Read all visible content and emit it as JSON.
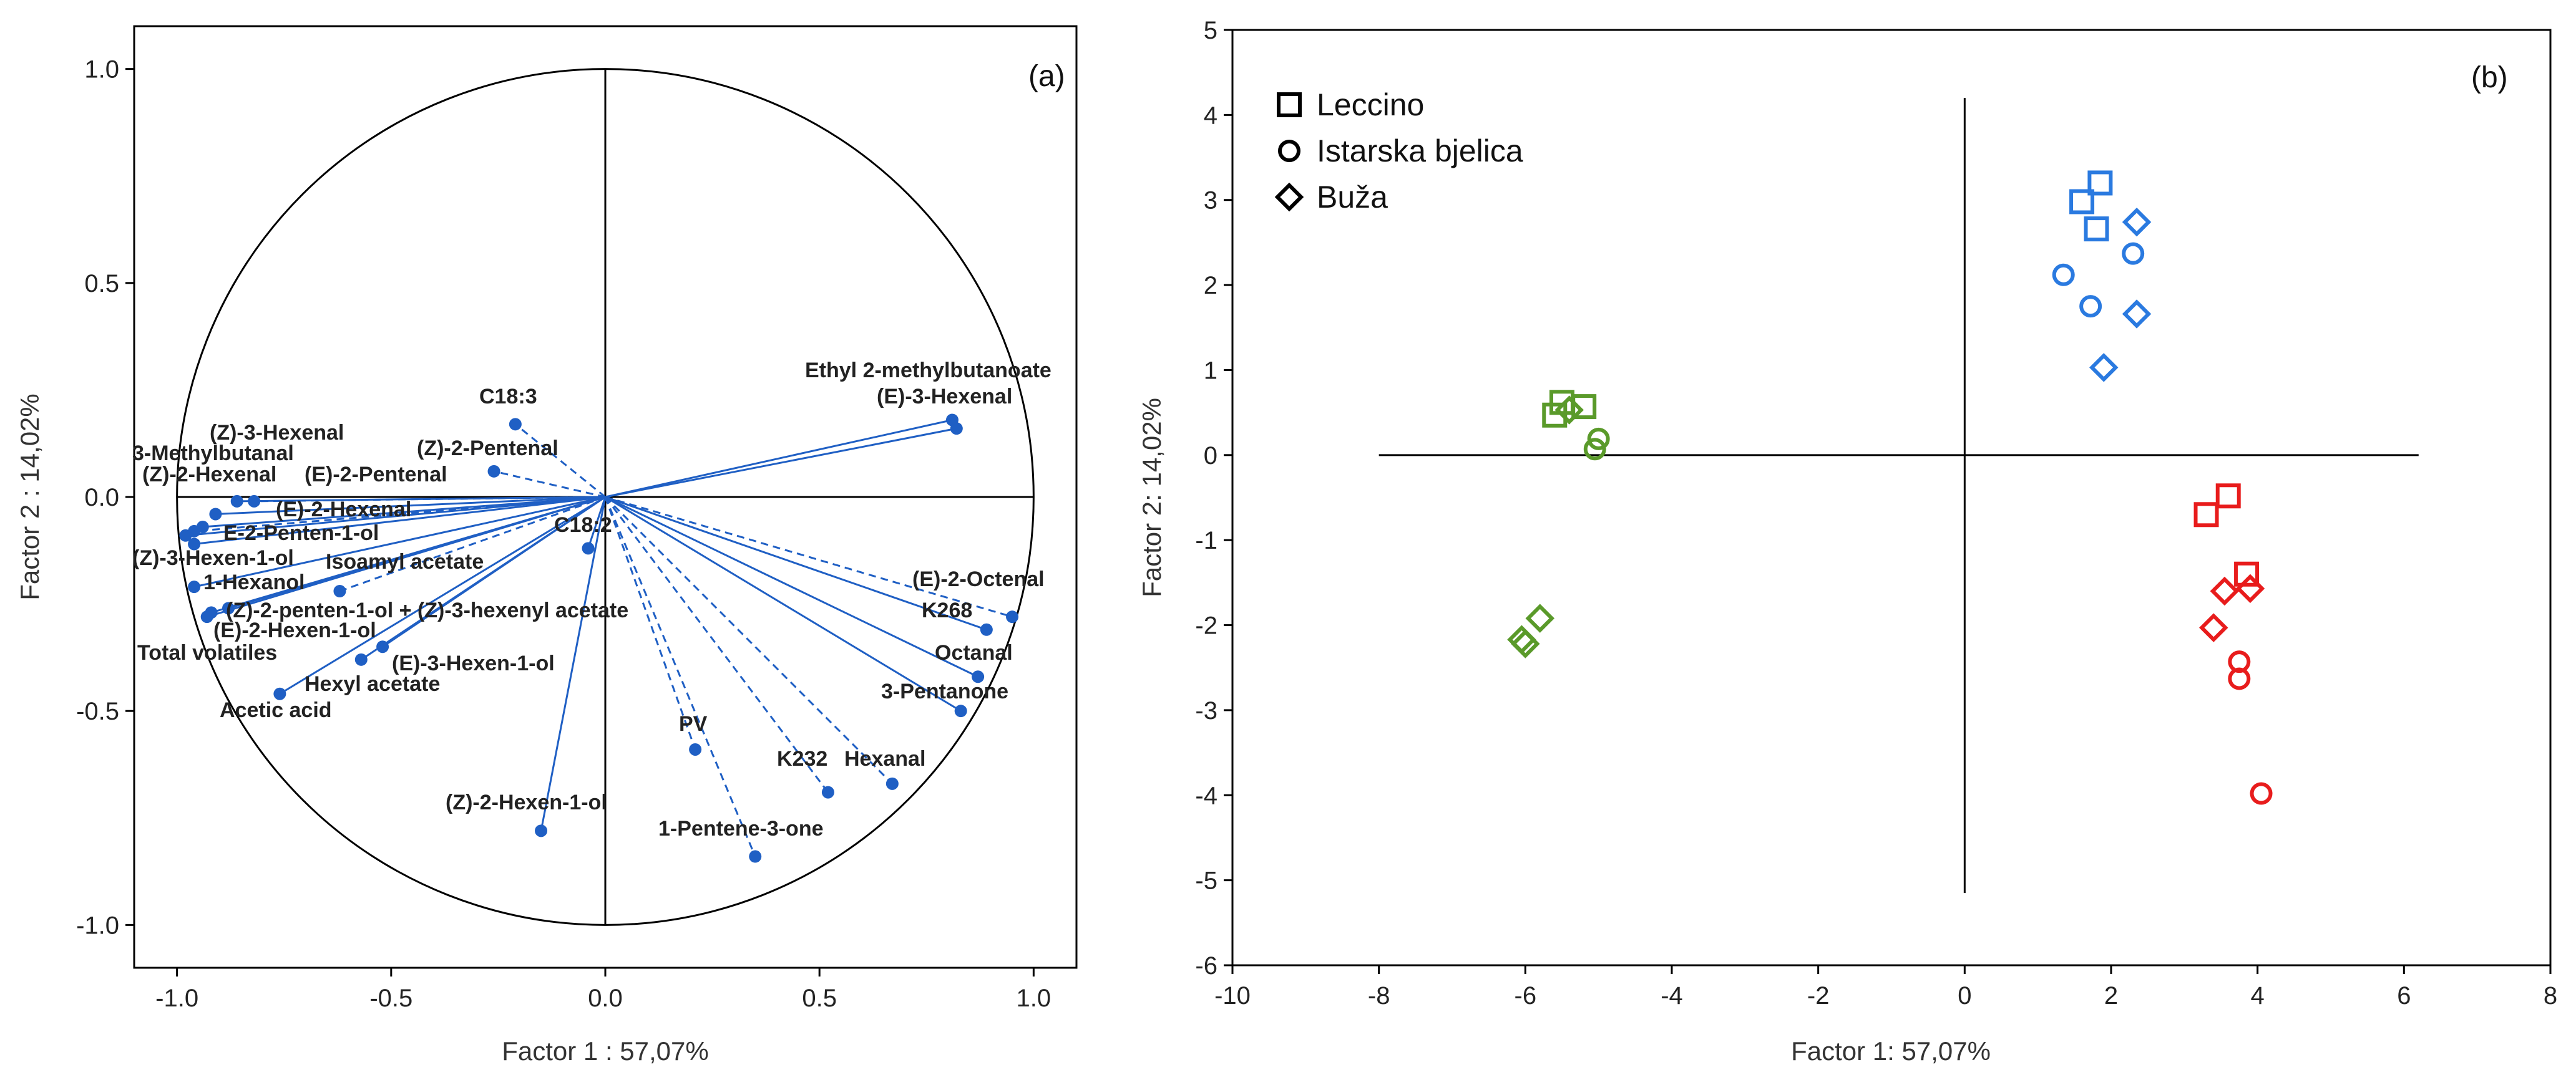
{
  "chart_data": [
    {
      "type": "scatter",
      "panel": "(a)",
      "xlabel": "Factor 1 : 57,07%",
      "ylabel": "Factor 2 : 14,02%",
      "xlim": [
        -1.1,
        1.1
      ],
      "ylim": [
        -1.1,
        1.1
      ],
      "xticks": [
        -1.0,
        -0.5,
        0.0,
        0.5,
        1.0
      ],
      "yticks": [
        -1.0,
        -0.5,
        0.0,
        0.5,
        1.0
      ],
      "xtick_labels": [
        "-1.0",
        "-0.5",
        "0.0",
        "0.5",
        "1.0"
      ],
      "ytick_labels": [
        "-1.0",
        "-0.5",
        "0.0",
        "0.5",
        "1.0"
      ],
      "point_color": "#1f5fc4",
      "variables": [
        {
          "label": "Ethyl 2-methylbutanoate",
          "x": 0.81,
          "y": 0.18,
          "style": "solid"
        },
        {
          "label": "(E)-3-Hexenal",
          "x": 0.82,
          "y": 0.16,
          "style": "solid"
        },
        {
          "label": "C18:3",
          "x": -0.21,
          "y": 0.17,
          "style": "dashed"
        },
        {
          "label": "(Z)-2-Pentenal",
          "x": -0.26,
          "y": 0.06,
          "style": "dashed"
        },
        {
          "label": "(Z)-3-Hexenal",
          "x": -0.86,
          "y": -0.01,
          "style": "solid"
        },
        {
          "label": "3-Methylbutanal",
          "x": -0.96,
          "y": -0.08,
          "style": "dashed"
        },
        {
          "label": "(Z)-2-Hexenal",
          "x": -0.91,
          "y": -0.04,
          "style": "solid"
        },
        {
          "label": "(E)-2-Pentenal",
          "x": -0.82,
          "y": -0.01,
          "style": "dashed"
        },
        {
          "label": "(E)-2-Hexenal",
          "x": -0.94,
          "y": -0.07,
          "style": "solid"
        },
        {
          "label": "E-2-Penten-1-ol",
          "x": -0.98,
          "y": -0.09,
          "style": "solid"
        },
        {
          "label": "(Z)-3-Hexen-1-ol",
          "x": -0.96,
          "y": -0.11,
          "style": "solid"
        },
        {
          "label": "C18:2",
          "x": -0.04,
          "y": -0.12,
          "style": "solid"
        },
        {
          "label": "Isoamyl acetate",
          "x": -0.62,
          "y": -0.22,
          "style": "dashed"
        },
        {
          "label": "1-Hexanol",
          "x": -0.96,
          "y": -0.21,
          "style": "solid"
        },
        {
          "label": "(Z)-2-penten-1-ol + (Z)-3-hexenyl acetate",
          "x": -0.88,
          "y": -0.26,
          "style": "solid"
        },
        {
          "label": "(E)-2-Hexen-1-ol",
          "x": -0.92,
          "y": -0.27,
          "style": "solid"
        },
        {
          "label": "Total volatiles",
          "x": -0.93,
          "y": -0.28,
          "style": "solid"
        },
        {
          "label": "(E)-3-Hexen-1-ol",
          "x": -0.52,
          "y": -0.35,
          "style": "solid"
        },
        {
          "label": "Hexyl acetate",
          "x": -0.57,
          "y": -0.38,
          "style": "solid"
        },
        {
          "label": "Acetic acid",
          "x": -0.76,
          "y": -0.46,
          "style": "solid"
        },
        {
          "label": "(E)-2-Octenal",
          "x": 0.95,
          "y": -0.28,
          "style": "dashed"
        },
        {
          "label": "K268",
          "x": 0.89,
          "y": -0.31,
          "style": "solid"
        },
        {
          "label": "Octanal",
          "x": 0.87,
          "y": -0.42,
          "style": "solid"
        },
        {
          "label": "3-Pentanone",
          "x": 0.83,
          "y": -0.5,
          "style": "solid"
        },
        {
          "label": "PV",
          "x": 0.21,
          "y": -0.59,
          "style": "dashed"
        },
        {
          "label": "K232",
          "x": 0.52,
          "y": -0.69,
          "style": "dashed"
        },
        {
          "label": "Hexanal",
          "x": 0.67,
          "y": -0.67,
          "style": "dashed"
        },
        {
          "label": "1-Pentene-3-one",
          "x": 0.35,
          "y": -0.84,
          "style": "dashed"
        },
        {
          "label": "(Z)-2-Hexen-1-ol",
          "x": -0.15,
          "y": -0.78,
          "style": "solid"
        }
      ]
    },
    {
      "type": "scatter",
      "panel": "(b)",
      "xlabel": "Factor 1: 57,07%",
      "ylabel": "Factor 2: 14,02%",
      "xlim": [
        -10,
        8
      ],
      "ylim": [
        -6,
        5
      ],
      "xticks": [
        -10,
        -8,
        -6,
        -4,
        -2,
        0,
        2,
        4,
        6,
        8
      ],
      "yticks": [
        -6,
        -5,
        -4,
        -3,
        -2,
        -1,
        0,
        1,
        2,
        3,
        4,
        5
      ],
      "xtick_labels": [
        "-10",
        "-8",
        "-6",
        "-4",
        "-2",
        "0",
        "2",
        "4",
        "6",
        "8"
      ],
      "ytick_labels": [
        "-6",
        "-5",
        "-4",
        "-3",
        "-2",
        "-1",
        "0",
        "1",
        "2",
        "3",
        "4",
        "5"
      ],
      "legend": [
        {
          "label": "Leccino",
          "marker": "square"
        },
        {
          "label": "Istarska bjelica",
          "marker": "circle"
        },
        {
          "label": "Buža",
          "marker": "diamond"
        }
      ],
      "legend_position": "top-left",
      "colors": {
        "green": "#5a9a2a",
        "blue": "#2a7ae0",
        "red": "#e81c1c"
      },
      "points": [
        {
          "x": -5.5,
          "y": 0.62,
          "marker": "square",
          "color": "green"
        },
        {
          "x": -5.6,
          "y": 0.47,
          "marker": "square",
          "color": "green"
        },
        {
          "x": -5.2,
          "y": 0.57,
          "marker": "square",
          "color": "green"
        },
        {
          "x": -5.4,
          "y": 0.53,
          "marker": "diamond",
          "color": "green"
        },
        {
          "x": -5.0,
          "y": 0.19,
          "marker": "circle",
          "color": "green"
        },
        {
          "x": -5.05,
          "y": 0.07,
          "marker": "circle",
          "color": "green"
        },
        {
          "x": -5.8,
          "y": -1.92,
          "marker": "diamond",
          "color": "green"
        },
        {
          "x": -6.05,
          "y": -2.17,
          "marker": "diamond",
          "color": "green"
        },
        {
          "x": -6.0,
          "y": -2.22,
          "marker": "diamond",
          "color": "green"
        },
        {
          "x": 1.85,
          "y": 3.2,
          "marker": "square",
          "color": "blue"
        },
        {
          "x": 1.6,
          "y": 2.98,
          "marker": "square",
          "color": "blue"
        },
        {
          "x": 1.8,
          "y": 2.66,
          "marker": "square",
          "color": "blue"
        },
        {
          "x": 2.35,
          "y": 2.74,
          "marker": "diamond",
          "color": "blue"
        },
        {
          "x": 2.3,
          "y": 2.37,
          "marker": "circle",
          "color": "blue"
        },
        {
          "x": 1.35,
          "y": 2.12,
          "marker": "circle",
          "color": "blue"
        },
        {
          "x": 1.72,
          "y": 1.75,
          "marker": "circle",
          "color": "blue"
        },
        {
          "x": 2.35,
          "y": 1.66,
          "marker": "diamond",
          "color": "blue"
        },
        {
          "x": 1.9,
          "y": 1.03,
          "marker": "diamond",
          "color": "blue"
        },
        {
          "x": 3.6,
          "y": -0.48,
          "marker": "square",
          "color": "red"
        },
        {
          "x": 3.3,
          "y": -0.7,
          "marker": "square",
          "color": "red"
        },
        {
          "x": 3.85,
          "y": -1.4,
          "marker": "square",
          "color": "red"
        },
        {
          "x": 3.9,
          "y": -1.57,
          "marker": "diamond",
          "color": "red"
        },
        {
          "x": 3.55,
          "y": -1.6,
          "marker": "diamond",
          "color": "red"
        },
        {
          "x": 3.4,
          "y": -2.03,
          "marker": "diamond",
          "color": "red"
        },
        {
          "x": 3.75,
          "y": -2.43,
          "marker": "circle",
          "color": "red"
        },
        {
          "x": 3.75,
          "y": -2.63,
          "marker": "circle",
          "color": "red"
        },
        {
          "x": 4.05,
          "y": -3.98,
          "marker": "circle",
          "color": "red"
        }
      ]
    }
  ]
}
